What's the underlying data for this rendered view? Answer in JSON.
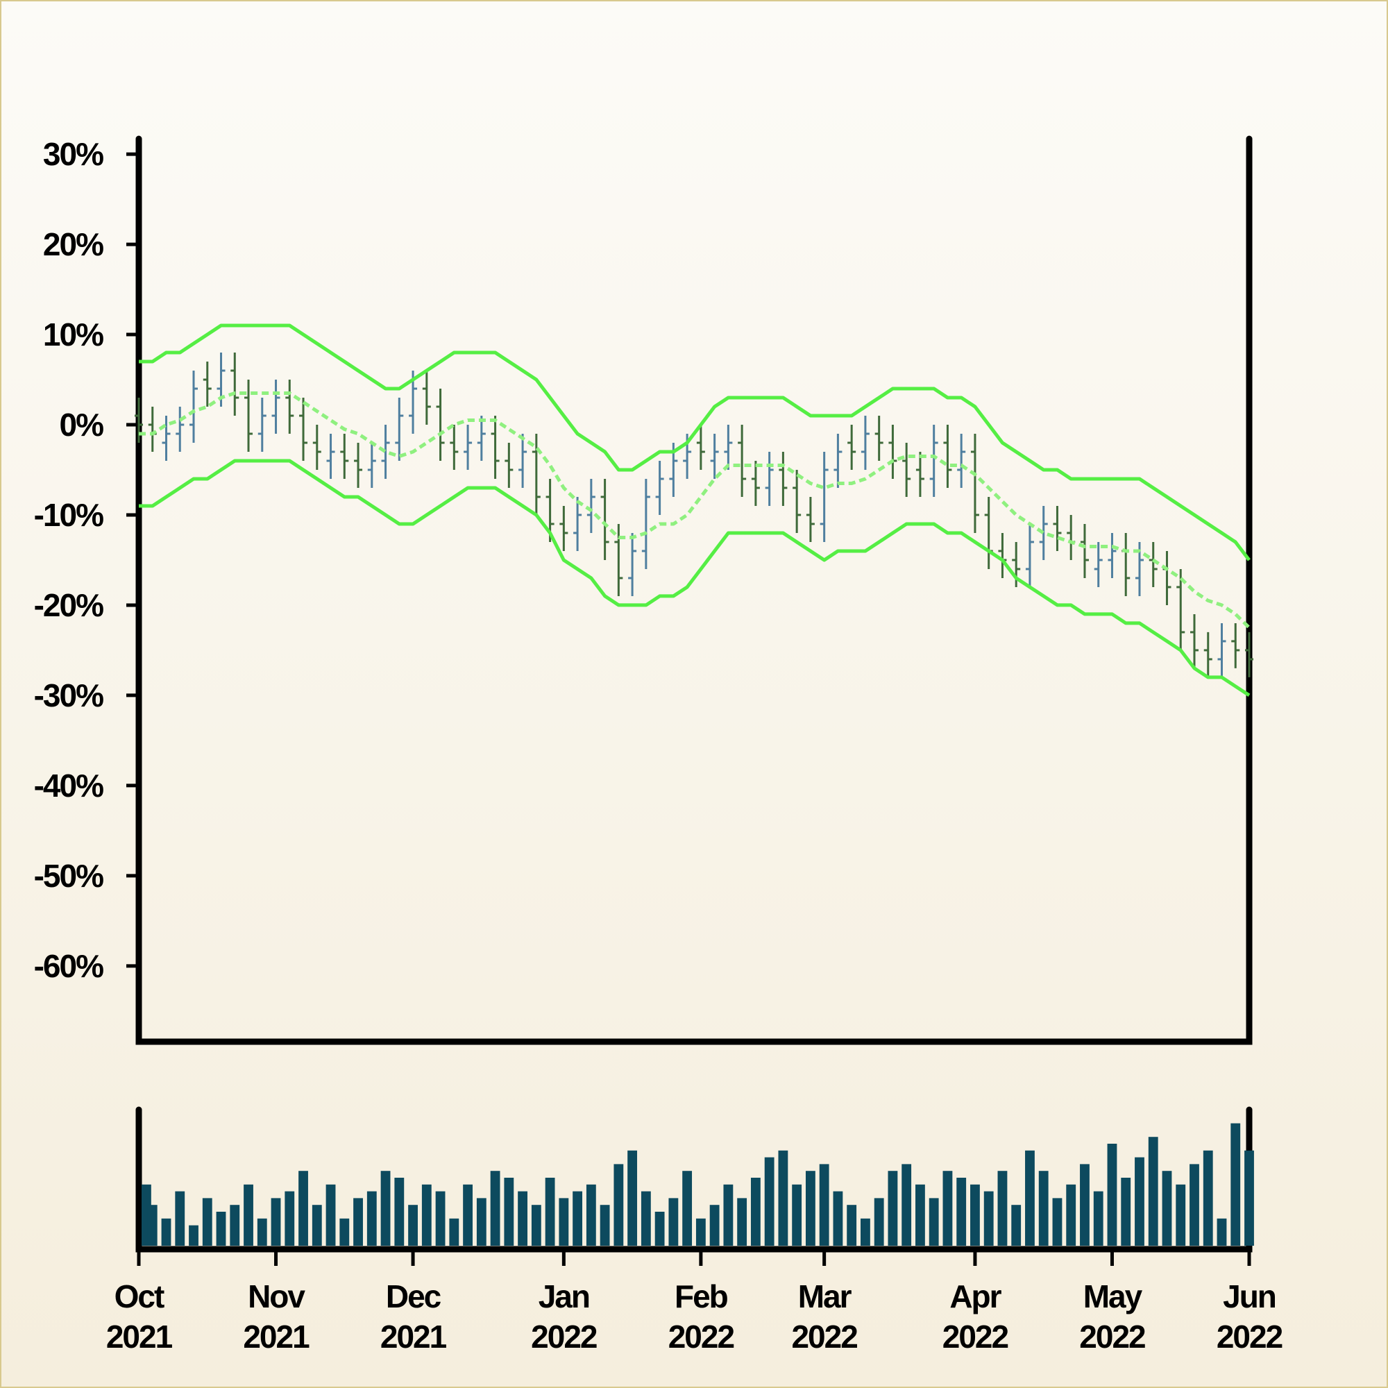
{
  "chart_data": {
    "type": "ohlc",
    "categories": [
      "Oct 2021",
      null,
      null,
      null,
      null,
      null,
      null,
      null,
      null,
      null,
      "Nov 2021",
      null,
      null,
      null,
      null,
      null,
      null,
      null,
      null,
      null,
      "Dec 2021",
      null,
      null,
      null,
      null,
      null,
      null,
      null,
      null,
      null,
      null,
      "Jan 2022",
      null,
      null,
      null,
      null,
      null,
      null,
      null,
      null,
      null,
      "Feb 2022",
      null,
      null,
      null,
      null,
      null,
      null,
      null,
      null,
      "Mar 2022",
      null,
      null,
      null,
      null,
      null,
      null,
      null,
      null,
      null,
      null,
      "Apr 2022",
      null,
      null,
      null,
      null,
      null,
      null,
      null,
      null,
      null,
      "May 2022",
      null,
      null,
      null,
      null,
      null,
      null,
      null,
      null,
      null,
      "Jun 2022"
    ],
    "open": [
      1,
      0,
      -2,
      -1,
      0,
      5,
      4,
      6,
      3,
      -1,
      1,
      3,
      1,
      -2,
      -4,
      -3,
      -4,
      -5,
      -4,
      -2,
      1,
      4,
      2,
      -2,
      -3,
      -2,
      -1,
      -4,
      -5,
      -3,
      -8,
      -11,
      -12,
      -10,
      -8,
      -13,
      -17,
      -14,
      -8,
      -6,
      -4,
      -2,
      -4,
      -3,
      -2,
      -6,
      -7,
      -5,
      -7,
      -10,
      -11,
      -5,
      -2,
      -3,
      -1,
      -2,
      -4,
      -5,
      -6,
      -2,
      -5,
      -3,
      -10,
      -14,
      -15,
      -16,
      -13,
      -11,
      -12,
      -13,
      -16,
      -15,
      -14,
      -17,
      -15,
      -16,
      -18,
      -23,
      -25,
      -26,
      -24,
      -25
    ],
    "high": [
      3,
      2,
      1,
      2,
      6,
      7,
      8,
      8,
      5,
      3,
      5,
      5,
      3,
      0,
      -1,
      -1,
      -2,
      -2,
      0,
      3,
      6,
      6,
      4,
      0,
      0,
      1,
      1,
      -2,
      -1,
      -1,
      -6,
      -9,
      -8,
      -6,
      -6,
      -11,
      -12,
      -6,
      -4,
      -2,
      -1,
      0,
      -1,
      0,
      0,
      -4,
      -3,
      -3,
      -5,
      -8,
      -3,
      -1,
      0,
      1,
      1,
      0,
      -2,
      -3,
      0,
      0,
      -1,
      -1,
      -8,
      -12,
      -13,
      -11,
      -9,
      -9,
      -10,
      -11,
      -13,
      -12,
      -12,
      -13,
      -13,
      -14,
      -16,
      -21,
      -23,
      -22,
      -22,
      -23
    ],
    "low": [
      -2,
      -3,
      -4,
      -3,
      -2,
      2,
      2,
      1,
      -3,
      -3,
      -1,
      -1,
      -4,
      -5,
      -6,
      -6,
      -7,
      -7,
      -6,
      -4,
      -1,
      0,
      -4,
      -5,
      -5,
      -4,
      -6,
      -7,
      -7,
      -10,
      -13,
      -14,
      -14,
      -12,
      -15,
      -19,
      -19,
      -16,
      -10,
      -8,
      -6,
      -5,
      -6,
      -5,
      -8,
      -9,
      -9,
      -9,
      -12,
      -13,
      -13,
      -7,
      -5,
      -5,
      -4,
      -6,
      -8,
      -8,
      -8,
      -7,
      -7,
      -12,
      -16,
      -17,
      -18,
      -18,
      -15,
      -14,
      -15,
      -17,
      -18,
      -17,
      -19,
      -19,
      -18,
      -20,
      -25,
      -27,
      -28,
      -28,
      -27,
      -28
    ],
    "close": [
      0,
      -1,
      -1,
      0,
      4,
      4,
      6,
      3,
      -1,
      1,
      3,
      1,
      -2,
      -3,
      -3,
      -4,
      -5,
      -4,
      -2,
      1,
      4,
      2,
      -2,
      -3,
      -2,
      -1,
      -4,
      -5,
      -3,
      -8,
      -11,
      -12,
      -10,
      -8,
      -13,
      -17,
      -14,
      -8,
      -6,
      -4,
      -3,
      -3,
      -3,
      -2,
      -6,
      -7,
      -5,
      -7,
      -10,
      -11,
      -5,
      -3,
      -3,
      -1,
      -2,
      -4,
      -6,
      -6,
      -2,
      -5,
      -3,
      -10,
      -14,
      -15,
      -16,
      -13,
      -11,
      -12,
      -13,
      -15,
      -15,
      -14,
      -17,
      -15,
      -16,
      -18,
      -23,
      -25,
      -26,
      -24,
      -25,
      -26
    ],
    "up_color": "#4f7f9f",
    "down_color": "#3f6a3a",
    "series": [
      {
        "color": "#55ee44",
        "dashed": false,
        "values": [
          7,
          7,
          8,
          8,
          9,
          10,
          11,
          11,
          11,
          11,
          11,
          11,
          10,
          9,
          8,
          7,
          6,
          5,
          4,
          4,
          5,
          6,
          7,
          8,
          8,
          8,
          8,
          7,
          6,
          5,
          3,
          1,
          -1,
          -2,
          -3,
          -5,
          -5,
          -4,
          -3,
          -3,
          -2,
          0,
          2,
          3,
          3,
          3,
          3,
          3,
          2,
          1,
          1,
          1,
          1,
          2,
          3,
          4,
          4,
          4,
          4,
          3,
          3,
          2,
          0,
          -2,
          -3,
          -4,
          -5,
          -5,
          -6,
          -6,
          -6,
          -6,
          -6,
          -6,
          -7,
          -8,
          -9,
          -10,
          -11,
          -12,
          -13,
          -15
        ]
      },
      {
        "color": "#8ff07f",
        "dashed": true,
        "values": [
          -1,
          -1,
          0,
          0.5,
          1.5,
          2,
          3,
          3.5,
          3.5,
          3.5,
          3.5,
          3.5,
          2.5,
          1.5,
          0.5,
          -0.5,
          -1,
          -2,
          -3,
          -3.5,
          -3,
          -2,
          -1,
          0,
          0.5,
          0.5,
          0.5,
          -0.5,
          -1.5,
          -2.5,
          -4.5,
          -7,
          -8.5,
          -9.5,
          -11,
          -12.5,
          -12.5,
          -12,
          -11,
          -11,
          -10,
          -8,
          -6,
          -4.5,
          -4.5,
          -4.5,
          -4.5,
          -4.5,
          -5.5,
          -6.5,
          -7,
          -6.5,
          -6.5,
          -6,
          -5,
          -4,
          -3.5,
          -3.5,
          -3.5,
          -4.5,
          -4.5,
          -5.5,
          -7,
          -8.5,
          -10,
          -11,
          -12,
          -12.5,
          -13,
          -13.5,
          -13.5,
          -13.5,
          -14,
          -14,
          -15,
          -16,
          -17,
          -18.5,
          -19.5,
          -20,
          -21,
          -22.5
        ]
      },
      {
        "color": "#55ee44",
        "dashed": false,
        "values": [
          -9,
          -9,
          -8,
          -7,
          -6,
          -6,
          -5,
          -4,
          -4,
          -4,
          -4,
          -4,
          -5,
          -6,
          -7,
          -8,
          -8,
          -9,
          -10,
          -11,
          -11,
          -10,
          -9,
          -8,
          -7,
          -7,
          -7,
          -8,
          -9,
          -10,
          -12,
          -15,
          -16,
          -17,
          -19,
          -20,
          -20,
          -20,
          -19,
          -19,
          -18,
          -16,
          -14,
          -12,
          -12,
          -12,
          -12,
          -12,
          -13,
          -14,
          -15,
          -14,
          -14,
          -14,
          -13,
          -12,
          -11,
          -11,
          -11,
          -12,
          -12,
          -13,
          -14,
          -15,
          -17,
          -18,
          -19,
          -20,
          -20,
          -21,
          -21,
          -21,
          -22,
          -22,
          -23,
          -24,
          -25,
          -27,
          -28,
          -28,
          -29,
          -30
        ]
      }
    ],
    "ylim": [
      -68.4,
      31.7
    ],
    "yticks": [
      {
        "value": -60,
        "label": "-60%"
      },
      {
        "value": -50,
        "label": "-50%"
      },
      {
        "value": -40,
        "label": "-40%"
      },
      {
        "value": -30,
        "label": "-30%"
      },
      {
        "value": -20,
        "label": "-20%"
      },
      {
        "value": -10,
        "label": "-10%"
      },
      {
        "value": 0,
        "label": "0%"
      },
      {
        "value": 10,
        "label": "10%"
      },
      {
        "value": 20,
        "label": "20%"
      },
      {
        "value": 30,
        "label": "30%"
      }
    ],
    "volume": {
      "color": "#0d4a5e",
      "ylim": [
        0,
        100
      ],
      "values": [
        45,
        30,
        20,
        40,
        15,
        35,
        25,
        30,
        45,
        20,
        35,
        40,
        55,
        30,
        45,
        20,
        35,
        40,
        55,
        50,
        30,
        45,
        40,
        20,
        45,
        35,
        55,
        50,
        40,
        30,
        50,
        35,
        40,
        45,
        30,
        60,
        70,
        40,
        25,
        35,
        55,
        20,
        30,
        45,
        35,
        50,
        65,
        70,
        45,
        55,
        60,
        40,
        30,
        20,
        35,
        55,
        60,
        45,
        35,
        55,
        50,
        45,
        40,
        55,
        30,
        70,
        55,
        35,
        45,
        60,
        40,
        75,
        50,
        65,
        80,
        55,
        45,
        60,
        70,
        20,
        90,
        70
      ]
    }
  }
}
